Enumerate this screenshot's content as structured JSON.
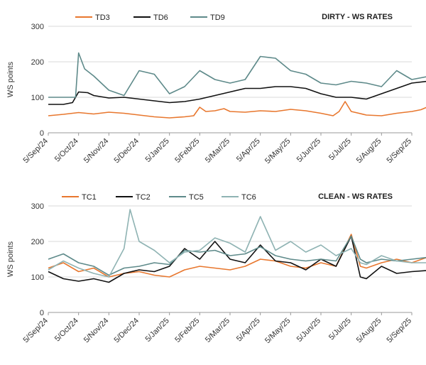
{
  "chart_data": [
    {
      "type": "line",
      "title": "DIRTY - WS RATES",
      "ylabel": "WS points",
      "ylim": [
        0,
        300
      ],
      "yticks": [
        "0",
        "100",
        "200",
        "300"
      ],
      "x_ticks": [
        "5/Sep/24",
        "5/Oct/24",
        "5/Nov/24",
        "5/Dec/24",
        "5/Jan/25",
        "5/Feb/25",
        "5/Mar/25",
        "5/Apr/25",
        "5/May/25",
        "5/Jun/25",
        "5/Jul/25",
        "5/Aug/25",
        "5/Sep/25"
      ],
      "grid": "horizontal",
      "legend": "top",
      "series": [
        {
          "name": "TD3",
          "color": "#e8772e",
          "points": [
            [
              0,
              48
            ],
            [
              0.5,
              52
            ],
            [
              1,
              57
            ],
            [
              1.5,
              53
            ],
            [
              2,
              58
            ],
            [
              2.5,
              55
            ],
            [
              3,
              50
            ],
            [
              3.5,
              45
            ],
            [
              4,
              42
            ],
            [
              4.5,
              45
            ],
            [
              4.8,
              48
            ],
            [
              5,
              72
            ],
            [
              5.2,
              60
            ],
            [
              5.5,
              62
            ],
            [
              5.8,
              68
            ],
            [
              6,
              60
            ],
            [
              6.5,
              58
            ],
            [
              7,
              62
            ],
            [
              7.5,
              60
            ],
            [
              8,
              66
            ],
            [
              8.5,
              62
            ],
            [
              9,
              55
            ],
            [
              9.4,
              48
            ],
            [
              9.6,
              60
            ],
            [
              9.8,
              88
            ],
            [
              10,
              60
            ],
            [
              10.5,
              50
            ],
            [
              11,
              48
            ],
            [
              11.5,
              55
            ],
            [
              12,
              60
            ],
            [
              12.3,
              65
            ],
            [
              12.5,
              72
            ]
          ]
        },
        {
          "name": "TD6",
          "color": "#111111",
          "points": [
            [
              0,
              80
            ],
            [
              0.5,
              80
            ],
            [
              0.8,
              85
            ],
            [
              1,
              115
            ],
            [
              1.3,
              113
            ],
            [
              1.5,
              105
            ],
            [
              2,
              98
            ],
            [
              2.5,
              100
            ],
            [
              3,
              95
            ],
            [
              3.5,
              90
            ],
            [
              4,
              85
            ],
            [
              4.5,
              88
            ],
            [
              5,
              95
            ],
            [
              5.5,
              105
            ],
            [
              6,
              115
            ],
            [
              6.5,
              125
            ],
            [
              7,
              125
            ],
            [
              7.5,
              130
            ],
            [
              8,
              130
            ],
            [
              8.5,
              125
            ],
            [
              9,
              110
            ],
            [
              9.5,
              100
            ],
            [
              10,
              100
            ],
            [
              10.5,
              95
            ],
            [
              11,
              110
            ],
            [
              11.5,
              125
            ],
            [
              12,
              140
            ],
            [
              12.5,
              145
            ]
          ]
        },
        {
          "name": "TD9",
          "color": "#5e8a8a",
          "points": [
            [
              0,
              100
            ],
            [
              0.5,
              100
            ],
            [
              0.9,
              100
            ],
            [
              1,
              225
            ],
            [
              1.2,
              180
            ],
            [
              1.5,
              160
            ],
            [
              2,
              120
            ],
            [
              2.5,
              105
            ],
            [
              3,
              175
            ],
            [
              3.5,
              165
            ],
            [
              4,
              110
            ],
            [
              4.5,
              130
            ],
            [
              5,
              175
            ],
            [
              5.5,
              150
            ],
            [
              6,
              140
            ],
            [
              6.5,
              150
            ],
            [
              7,
              215
            ],
            [
              7.5,
              210
            ],
            [
              8,
              175
            ],
            [
              8.5,
              165
            ],
            [
              9,
              140
            ],
            [
              9.5,
              135
            ],
            [
              10,
              145
            ],
            [
              10.5,
              140
            ],
            [
              11,
              130
            ],
            [
              11.5,
              175
            ],
            [
              12,
              150
            ],
            [
              12.5,
              158
            ]
          ]
        }
      ]
    },
    {
      "type": "line",
      "title": "CLEAN - WS RATES",
      "ylabel": "WS points",
      "ylim": [
        0,
        300
      ],
      "yticks": [
        "0",
        "100",
        "200",
        "300"
      ],
      "x_ticks": [
        "5/Sep/24",
        "5/Oct/24",
        "5/Nov/24",
        "5/Dec/24",
        "5/Jan/25",
        "5/Feb/25",
        "5/Mar/25",
        "5/Apr/25",
        "5/May/25",
        "5/Jun/25",
        "5/Jul/25",
        "5/Aug/25",
        "5/Sep/25"
      ],
      "grid": "horizontal",
      "legend": "top",
      "series": [
        {
          "name": "TC1",
          "color": "#e8772e",
          "points": [
            [
              0,
              125
            ],
            [
              0.5,
              140
            ],
            [
              1,
              115
            ],
            [
              1.5,
              125
            ],
            [
              2,
              100
            ],
            [
              2.5,
              110
            ],
            [
              3,
              115
            ],
            [
              3.5,
              105
            ],
            [
              4,
              100
            ],
            [
              4.5,
              120
            ],
            [
              5,
              130
            ],
            [
              5.5,
              125
            ],
            [
              6,
              120
            ],
            [
              6.5,
              130
            ],
            [
              7,
              150
            ],
            [
              7.5,
              145
            ],
            [
              8,
              130
            ],
            [
              8.5,
              125
            ],
            [
              9,
              140
            ],
            [
              9.5,
              130
            ],
            [
              10,
              220
            ],
            [
              10.3,
              130
            ],
            [
              10.5,
              125
            ],
            [
              11,
              140
            ],
            [
              11.5,
              150
            ],
            [
              12,
              140
            ],
            [
              12.5,
              155
            ]
          ]
        },
        {
          "name": "TC2",
          "color": "#111111",
          "points": [
            [
              0,
              115
            ],
            [
              0.5,
              95
            ],
            [
              1,
              88
            ],
            [
              1.5,
              95
            ],
            [
              2,
              85
            ],
            [
              2.5,
              110
            ],
            [
              3,
              120
            ],
            [
              3.5,
              115
            ],
            [
              4,
              130
            ],
            [
              4.5,
              180
            ],
            [
              5,
              150
            ],
            [
              5.5,
              200
            ],
            [
              6,
              150
            ],
            [
              6.5,
              140
            ],
            [
              7,
              190
            ],
            [
              7.5,
              145
            ],
            [
              8,
              140
            ],
            [
              8.5,
              120
            ],
            [
              9,
              150
            ],
            [
              9.5,
              130
            ],
            [
              10,
              215
            ],
            [
              10.3,
              100
            ],
            [
              10.5,
              95
            ],
            [
              11,
              130
            ],
            [
              11.5,
              110
            ],
            [
              12,
              115
            ],
            [
              12.5,
              118
            ]
          ]
        },
        {
          "name": "TC5",
          "color": "#5e8a8a",
          "points": [
            [
              0,
              150
            ],
            [
              0.5,
              165
            ],
            [
              1,
              140
            ],
            [
              1.5,
              130
            ],
            [
              2,
              105
            ],
            [
              2.5,
              125
            ],
            [
              3,
              130
            ],
            [
              3.5,
              140
            ],
            [
              4,
              135
            ],
            [
              4.5,
              175
            ],
            [
              5,
              170
            ],
            [
              5.5,
              175
            ],
            [
              6,
              160
            ],
            [
              6.5,
              165
            ],
            [
              7,
              185
            ],
            [
              7.5,
              160
            ],
            [
              8,
              150
            ],
            [
              8.5,
              145
            ],
            [
              9,
              150
            ],
            [
              9.5,
              145
            ],
            [
              10,
              215
            ],
            [
              10.3,
              150
            ],
            [
              10.5,
              140
            ],
            [
              11,
              150
            ],
            [
              11.5,
              145
            ],
            [
              12,
              150
            ],
            [
              12.5,
              155
            ]
          ]
        },
        {
          "name": "TC6",
          "color": "#8fb3b3",
          "points": [
            [
              0,
              120
            ],
            [
              0.5,
              145
            ],
            [
              1,
              125
            ],
            [
              1.5,
              110
            ],
            [
              2,
              100
            ],
            [
              2.5,
              180
            ],
            [
              2.7,
              290
            ],
            [
              3,
              200
            ],
            [
              3.5,
              175
            ],
            [
              4,
              140
            ],
            [
              4.5,
              170
            ],
            [
              5,
              175
            ],
            [
              5.5,
              210
            ],
            [
              6,
              195
            ],
            [
              6.5,
              170
            ],
            [
              7,
              270
            ],
            [
              7.5,
              175
            ],
            [
              8,
              200
            ],
            [
              8.5,
              170
            ],
            [
              9,
              190
            ],
            [
              9.5,
              160
            ],
            [
              10,
              180
            ],
            [
              10.3,
              140
            ],
            [
              10.5,
              135
            ],
            [
              11,
              160
            ],
            [
              11.5,
              145
            ],
            [
              12,
              140
            ],
            [
              12.5,
              140
            ]
          ]
        }
      ]
    }
  ]
}
